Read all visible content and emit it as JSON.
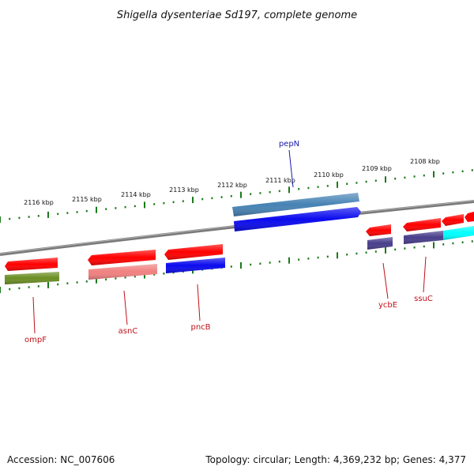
{
  "title": "Shigella dysenteriae Sd197, complete genome",
  "footer": {
    "accession": "Accession: NC_007606",
    "topology": "Topology: circular; Length: 4,369,232 bp; Genes: 4,377"
  },
  "scale_labels": [
    "2116 kbp",
    "2115 kbp",
    "2114 kbp",
    "2113 kbp",
    "2112 kbp",
    "2111 kbp",
    "2110 kbp",
    "2109 kbp",
    "2108 kbp"
  ],
  "colors": {
    "backbone": "#808080",
    "tick": "#1a7a1a",
    "forward_label": "#1a1aa8",
    "reverse_label": "#c0101a"
  },
  "genes": [
    {
      "label": "pepN",
      "strand": "forward",
      "color": "#0a0aee"
    },
    {
      "label": "ompF",
      "strand": "reverse",
      "color": "#6b8e23"
    },
    {
      "label": "asnC",
      "strand": "reverse",
      "color": "#f08080"
    },
    {
      "label": "pncB",
      "strand": "reverse",
      "color": "#0a0aee"
    },
    {
      "label": "ycbE",
      "strand": "reverse",
      "color": "#483d8b"
    },
    {
      "label": "ssuC",
      "strand": "reverse",
      "color": "#483d8b"
    }
  ]
}
